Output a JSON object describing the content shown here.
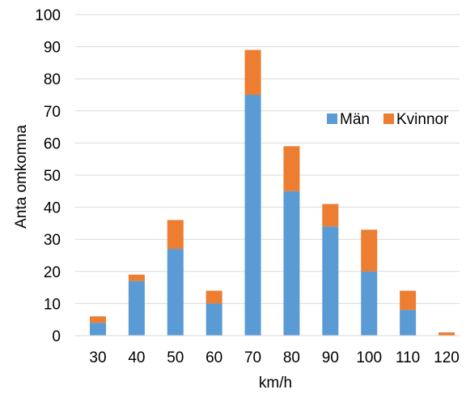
{
  "chart_data": {
    "type": "bar",
    "stacked": true,
    "title": "",
    "xlabel": "km/h",
    "ylabel": "Anta omkomna",
    "categories": [
      "30",
      "40",
      "50",
      "60",
      "70",
      "80",
      "90",
      "100",
      "110",
      "120"
    ],
    "series": [
      {
        "name": "Män",
        "color": "#5b9bd5",
        "values": [
          4,
          17,
          27,
          10,
          75,
          45,
          34,
          20,
          8,
          0
        ]
      },
      {
        "name": "Kvinnor",
        "color": "#ed7d31",
        "values": [
          2,
          2,
          9,
          4,
          14,
          14,
          7,
          13,
          6,
          1
        ]
      }
    ],
    "ylim": [
      0,
      100
    ],
    "yticks": [
      0,
      10,
      20,
      30,
      40,
      50,
      60,
      70,
      80,
      90,
      100
    ],
    "grid": true,
    "legend": {
      "position": "right, inside plot",
      "items": [
        "Män",
        "Kvinnor"
      ]
    }
  }
}
